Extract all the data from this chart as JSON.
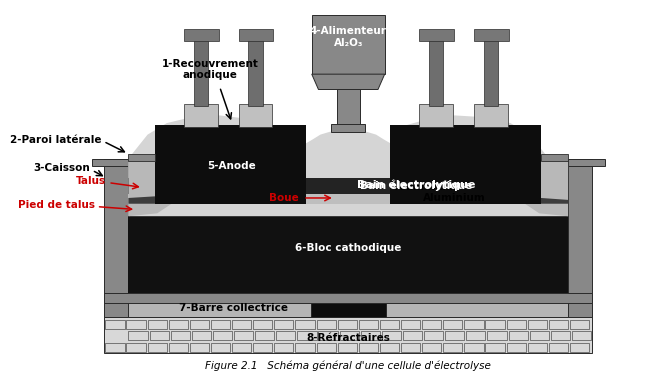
{
  "title": "Figure 2.1   Schéma général d'une cellule d'électrolyse",
  "bg_color": "#ffffff",
  "colors": {
    "black": "#0d0d0d",
    "dark_gray": "#2a2a2a",
    "medium_gray": "#777777",
    "light_gray": "#aaaaaa",
    "very_light_gray": "#c8c8c8",
    "lighter_gray": "#b8b8b8",
    "white": "#ffffff",
    "red": "#cc0000",
    "caisson_gray": "#888888",
    "dark_charcoal": "#111111",
    "anode_cover_gray": "#d5d5d5",
    "feeder_gray": "#888888",
    "bath_dark": "#232323",
    "aluminium_silver": "#bebebe",
    "barre_gray": "#b5b5b5",
    "refractaire_light": "#d8d8d8",
    "inner_wall_light": "#c0c0c0",
    "rod_gray": "#6e6e6e"
  },
  "labels": {
    "1": "1-Recouvrement\nanodique",
    "2": "2-Paroi latérale",
    "3": "3-Caisson",
    "4": "4-Alimenteur\nAl₂O₃",
    "5": "5-Anode",
    "6": "6-Bloc cathodique",
    "7": "7-Barre collectrice",
    "8": "8-Réfractaires",
    "talus": "Talus",
    "pied_de_talus": "Pied de talus",
    "bain": "Bain électrolytique",
    "aluminium": "Aluminium",
    "boue": "Boue"
  }
}
